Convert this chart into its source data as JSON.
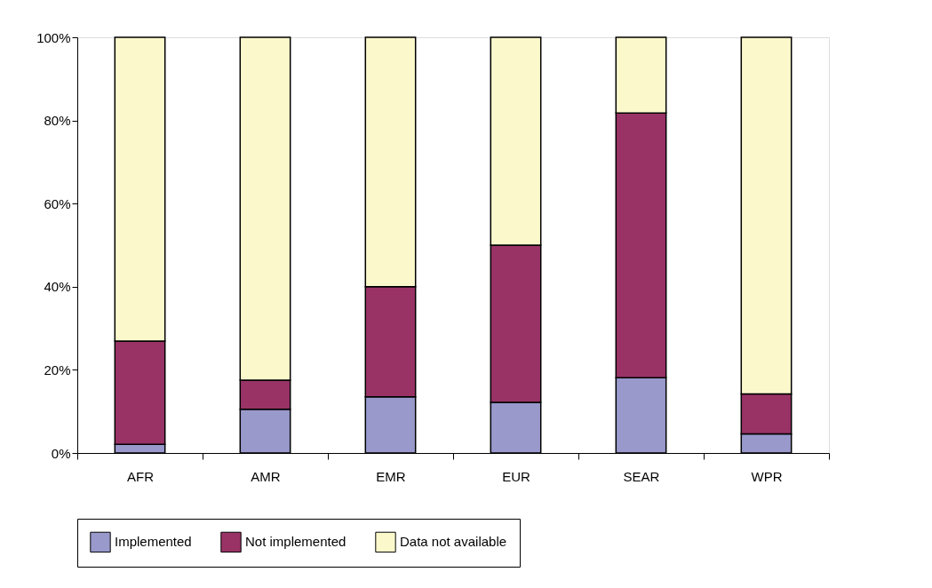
{
  "chart_data": {
    "type": "bar",
    "stacked": true,
    "categories": [
      "AFR",
      "AMR",
      "EMR",
      "EUR",
      "SEAR",
      "WPR"
    ],
    "series": [
      {
        "name": "Implemented",
        "color": "#9999cc",
        "values": [
          2.1,
          10.5,
          13.5,
          12.2,
          18.1,
          4.6
        ]
      },
      {
        "name": "Not implemented",
        "color": "#993366",
        "values": [
          24.8,
          7.0,
          26.5,
          37.8,
          63.7,
          9.6
        ]
      },
      {
        "name": "Data not available",
        "color": "#fbf8cc",
        "values": [
          73.1,
          82.5,
          60.0,
          50.0,
          18.2,
          85.8
        ]
      }
    ],
    "ylim": [
      0,
      100
    ],
    "yticks": [
      {
        "value": 0,
        "label": "0%"
      },
      {
        "value": 20,
        "label": "20%"
      },
      {
        "value": 40,
        "label": "40%"
      },
      {
        "value": 60,
        "label": "60%"
      },
      {
        "value": 80,
        "label": "80%"
      },
      {
        "value": 100,
        "label": "100%"
      }
    ],
    "grid": false,
    "legend": "bottom"
  }
}
